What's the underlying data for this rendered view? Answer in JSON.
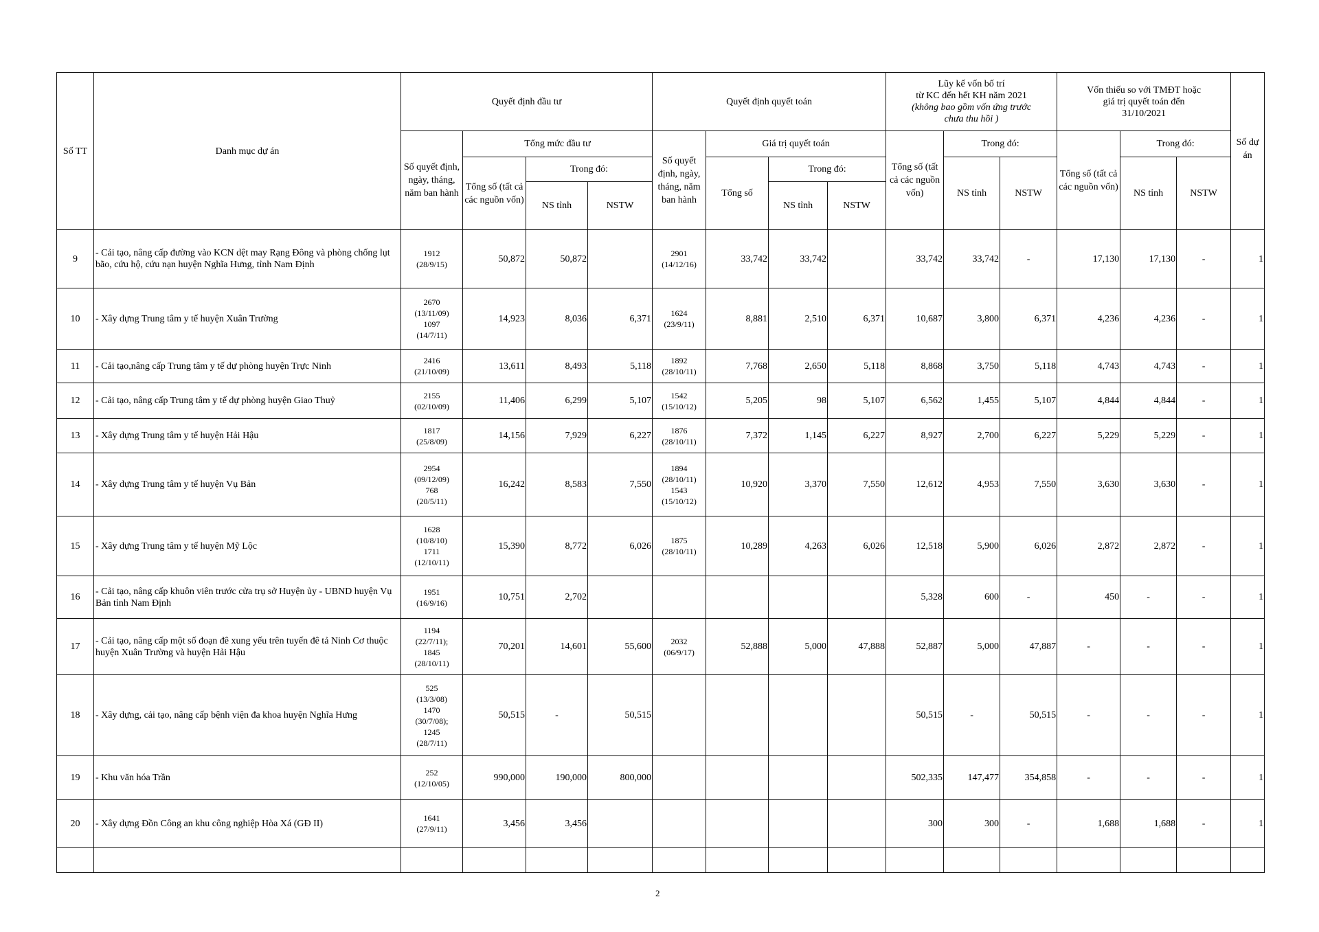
{
  "header": {
    "stt": "Số TT",
    "name": "Danh mục dự án",
    "qddt": "Quyết định đầu tư",
    "qdqt": "Quyết định quyết toán",
    "luyke_line1": "Lũy kế vốn bố trí",
    "luyke_line2": "từ KC đến hết KH năm 2021",
    "luyke_note": "(không bao gồm vốn ứng trước chưa thu hồi )",
    "vonthieu": "Vốn thiếu so với TMĐT hoặc giá trị quyết toán đến 31/10/2021",
    "so_du_an": "Số dự án",
    "so_qd_dt": "Số quyết định, ngày, tháng, năm ban hành",
    "tong_muc": "Tổng mức đầu tư",
    "so_qd_qt": "Số quyết định, ngày, tháng, năm ban hành",
    "gia_tri_qt": "Giá trị quyết toán",
    "tong_so_all": "Tổng số (tất cả các nguồn vốn)",
    "tong_so": "Tổng số",
    "trong_do": "Trong đó:",
    "ns_tinh": "NS tỉnh",
    "nstw": "NSTW"
  },
  "rows": [
    {
      "stt": "9",
      "name": " - Cải tạo, nâng cấp đường vào KCN dệt may Rạng Đông và phòng chống lụt bão, cứu hộ, cứu nạn huyện Nghĩa Hưng, tỉnh Nam Định",
      "qd_dt": "1912\n(28/9/15)",
      "dt_total": "50,872",
      "dt_ns": "50,872",
      "dt_nstw": "",
      "qd_qt": "2901\n(14/12/16)",
      "qt_total": "33,742",
      "qt_ns": "33,742",
      "qt_nstw": "",
      "lk_total": "33,742",
      "lk_ns": "33,742",
      "lk_nstw": "-",
      "vt_total": "17,130",
      "vt_ns": "17,130",
      "vt_nstw": "-",
      "so_du_an": "1"
    },
    {
      "stt": "10",
      "name": "- Xây dựng Trung tâm y tế huyện Xuân Trường",
      "qd_dt": "2670\n(13/11/09)\n1097\n(14/7/11)",
      "dt_total": "14,923",
      "dt_ns": "8,036",
      "dt_nstw": "6,371",
      "qd_qt": "1624\n(23/9/11)",
      "qt_total": "8,881",
      "qt_ns": "2,510",
      "qt_nstw": "6,371",
      "lk_total": "10,687",
      "lk_ns": "3,800",
      "lk_nstw": "6,371",
      "vt_total": "4,236",
      "vt_ns": "4,236",
      "vt_nstw": "-",
      "so_du_an": "1"
    },
    {
      "stt": "11",
      "name": "- Cải tạo,nâng cấp Trung tâm y tế dự phòng huyện Trực Ninh",
      "qd_dt": "2416\n(21/10/09)",
      "dt_total": "13,611",
      "dt_ns": "8,493",
      "dt_nstw": "5,118",
      "qd_qt": "1892\n(28/10/11)",
      "qt_total": "7,768",
      "qt_ns": "2,650",
      "qt_nstw": "5,118",
      "lk_total": "8,868",
      "lk_ns": "3,750",
      "lk_nstw": "5,118",
      "vt_total": "4,743",
      "vt_ns": "4,743",
      "vt_nstw": "-",
      "so_du_an": "1"
    },
    {
      "stt": "12",
      "name": "- Cải tạo, nâng cấp Trung tâm y tế dự phòng huyện Giao Thuỷ",
      "qd_dt": "2155\n(02/10/09)",
      "dt_total": "11,406",
      "dt_ns": "6,299",
      "dt_nstw": "5,107",
      "qd_qt": "1542\n(15/10/12)",
      "qt_total": "5,205",
      "qt_ns": "98",
      "qt_nstw": "5,107",
      "lk_total": "6,562",
      "lk_ns": "1,455",
      "lk_nstw": "5,107",
      "vt_total": "4,844",
      "vt_ns": "4,844",
      "vt_nstw": "-",
      "so_du_an": "1"
    },
    {
      "stt": "13",
      "name": "- Xây dựng Trung tâm y tế huyện Hải Hậu",
      "qd_dt": "1817\n(25/8/09)",
      "dt_total": "14,156",
      "dt_ns": "7,929",
      "dt_nstw": "6,227",
      "qd_qt": "1876\n(28/10/11)",
      "qt_total": "7,372",
      "qt_ns": "1,145",
      "qt_nstw": "6,227",
      "lk_total": "8,927",
      "lk_ns": "2,700",
      "lk_nstw": "6,227",
      "vt_total": "5,229",
      "vt_ns": "5,229",
      "vt_nstw": "-",
      "so_du_an": "1"
    },
    {
      "stt": "14",
      "name": " - Xây dựng Trung tâm y tế huyện Vụ Bản",
      "qd_dt": "2954\n(09/12/09)\n768\n(20/5/11)",
      "dt_total": "16,242",
      "dt_ns": "8,583",
      "dt_nstw": "7,550",
      "qd_qt": "1894\n(28/10/11)\n1543\n(15/10/12)",
      "qt_total": "10,920",
      "qt_ns": "3,370",
      "qt_nstw": "7,550",
      "lk_total": "12,612",
      "lk_ns": "4,953",
      "lk_nstw": "7,550",
      "vt_total": "3,630",
      "vt_ns": "3,630",
      "vt_nstw": "-",
      "so_du_an": "1"
    },
    {
      "stt": "15",
      "name": "- Xây dựng Trung tâm y tế huyện Mỹ Lộc",
      "qd_dt": "1628\n(10/8/10)\n1711\n(12/10/11)",
      "dt_total": "15,390",
      "dt_ns": "8,772",
      "dt_nstw": "6,026",
      "qd_qt": "1875\n(28/10/11)",
      "qt_total": "10,289",
      "qt_ns": "4,263",
      "qt_nstw": "6,026",
      "lk_total": "12,518",
      "lk_ns": "5,900",
      "lk_nstw": "6,026",
      "vt_total": "2,872",
      "vt_ns": "2,872",
      "vt_nstw": "-",
      "so_du_an": "1"
    },
    {
      "stt": "16",
      "name": " - Cải tạo, nâng cấp khuôn viên trước cửa trụ sở Huyện ủy - UBND huyện Vụ Bản tỉnh Nam Định",
      "qd_dt": "1951\n(16/9/16)",
      "dt_total": "10,751",
      "dt_ns": "2,702",
      "dt_nstw": "",
      "qd_qt": "",
      "qt_total": "",
      "qt_ns": "",
      "qt_nstw": "",
      "lk_total": "5,328",
      "lk_ns": "600",
      "lk_nstw": "-",
      "vt_total": "450",
      "vt_ns": "-",
      "vt_nstw": "-",
      "so_du_an": "1"
    },
    {
      "stt": "17",
      "name": " - Cải tạo, nâng cấp một số đoạn đê xung yếu trên tuyến đê tả Ninh Cơ thuộc huyện Xuân Trường và huyện Hải Hậu",
      "qd_dt": "1194\n(22/7/11);\n1845\n(28/10/11)",
      "dt_total": "70,201",
      "dt_ns": "14,601",
      "dt_nstw": "55,600",
      "qd_qt": "2032\n(06/9/17)",
      "qt_total": "52,888",
      "qt_ns": "5,000",
      "qt_nstw": "47,888",
      "lk_total": "52,887",
      "lk_ns": "5,000",
      "lk_nstw": "47,887",
      "vt_total": "-",
      "vt_ns": "-",
      "vt_nstw": "-",
      "so_du_an": "1"
    },
    {
      "stt": "18",
      "name": " - Xây dựng, cải tạo, nâng cấp bệnh viện đa khoa huyện Nghĩa Hưng",
      "qd_dt": "525\n(13/3/08)\n1470\n(30/7/08);\n1245\n(28/7/11)",
      "dt_total": "50,515",
      "dt_ns": "-",
      "dt_nstw": "50,515",
      "qd_qt": "",
      "qt_total": "",
      "qt_ns": "",
      "qt_nstw": "",
      "lk_total": "50,515",
      "lk_ns": "-",
      "lk_nstw": "50,515",
      "vt_total": "-",
      "vt_ns": "-",
      "vt_nstw": "-",
      "so_du_an": "1"
    },
    {
      "stt": "19",
      "name": " - Khu văn hóa Trần",
      "qd_dt": "252\n(12/10/05)",
      "dt_total": "990,000",
      "dt_ns": "190,000",
      "dt_nstw": "800,000",
      "qd_qt": "",
      "qt_total": "",
      "qt_ns": "",
      "qt_nstw": "",
      "lk_total": "502,335",
      "lk_ns": "147,477",
      "lk_nstw": "354,858",
      "vt_total": "-",
      "vt_ns": "-",
      "vt_nstw": "-",
      "so_du_an": "1"
    },
    {
      "stt": "20",
      "name": " - Xây dựng Đồn Công an khu công nghiệp Hòa Xá (GĐ II)",
      "qd_dt": "1641\n(27/9/11)",
      "dt_total": "3,456",
      "dt_ns": "3,456",
      "dt_nstw": "",
      "qd_qt": "",
      "qt_total": "",
      "qt_ns": "",
      "qt_nstw": "",
      "lk_total": "300",
      "lk_ns": "300",
      "lk_nstw": "-",
      "vt_total": "1,688",
      "vt_ns": "1,688",
      "vt_nstw": "-",
      "so_du_an": "1"
    }
  ],
  "page_number": "2"
}
